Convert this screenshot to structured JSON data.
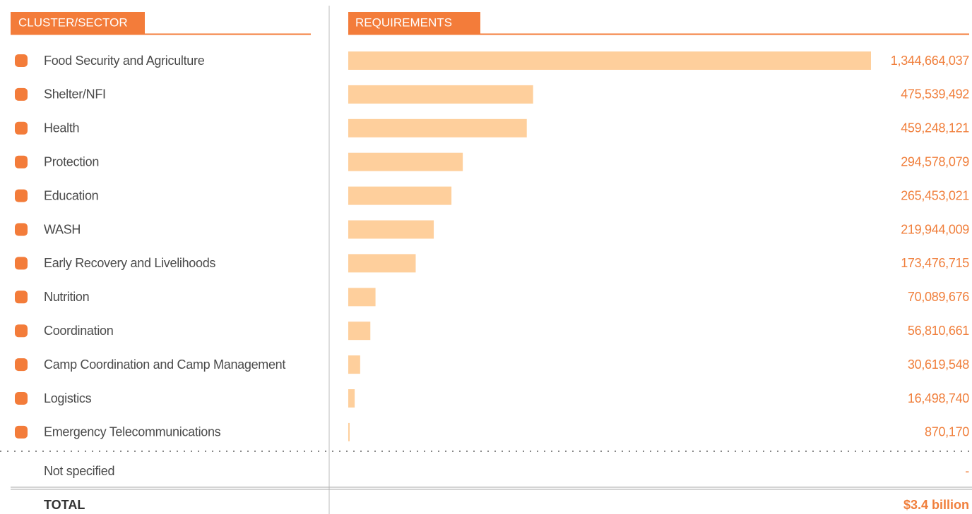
{
  "chart_data": {
    "type": "bar",
    "orientation": "horizontal",
    "column_headers": [
      "CLUSTER/SECTOR",
      "REQUIREMENTS"
    ],
    "categories": [
      "Food Security and Agriculture",
      "Shelter/NFI",
      "Health",
      "Protection",
      "Education",
      "WASH",
      "Early Recovery and Livelihoods",
      "Nutrition",
      "Coordination",
      "Camp Coordination and Camp Management",
      "Logistics",
      "Emergency Telecommunications",
      "Not specified"
    ],
    "values": [
      1344664037,
      475539492,
      459248121,
      294578079,
      265453021,
      219944009,
      173476715,
      70089676,
      56810661,
      30619548,
      16498740,
      870170,
      null
    ],
    "value_labels": [
      "1,344,664,037",
      "475,539,492",
      "459,248,121",
      "294,578,079",
      "265,453,021",
      "219,944,009",
      "173,476,715",
      "70,089,676",
      "56,810,661",
      "30,619,548",
      "16,498,740",
      "870,170",
      "-"
    ],
    "total_label": "TOTAL",
    "total": "$3.4 billion",
    "color": "#fecf9c"
  }
}
